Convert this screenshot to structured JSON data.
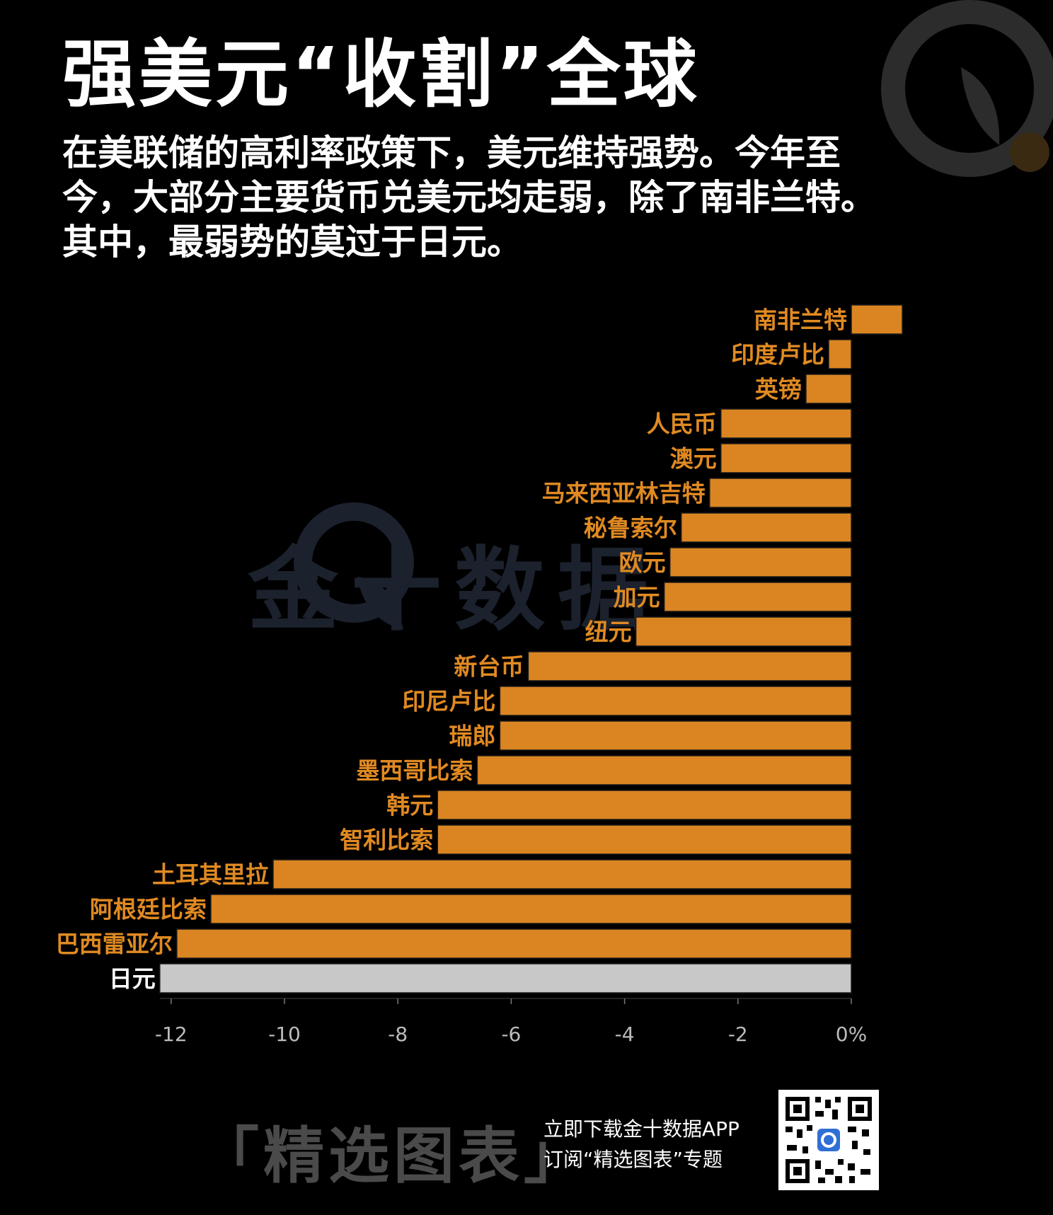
{
  "title": "强美元“收割”全球",
  "subtitle": "在美联储的高利率政策下，美元维持强势。今年至今，大部分主要货币兑美元均走弱，除了南非兰特。其中，最弱势的莫过于日元。",
  "watermark": "金十数据",
  "colors": {
    "background": "#000000",
    "bar": "#db8522",
    "bar_highlight": "#c8c8c8",
    "label": "#e08a22",
    "label_highlight": "#ffffff"
  },
  "chart_data": {
    "type": "bar",
    "orientation": "horizontal",
    "categories": [
      "南非兰特",
      "印度卢比",
      "英镑",
      "人民币",
      "澳元",
      "马来西亚林吉特",
      "秘鲁索尔",
      "欧元",
      "加元",
      "纽元",
      "新台币",
      "印尼卢比",
      "瑞郎",
      "墨西哥比索",
      "韩元",
      "智利比索",
      "土耳其里拉",
      "阿根廷比索",
      "巴西雷亚尔",
      "日元"
    ],
    "values": [
      0.9,
      -0.4,
      -0.8,
      -2.3,
      -2.3,
      -2.5,
      -3.0,
      -3.2,
      -3.3,
      -3.8,
      -5.7,
      -6.2,
      -6.2,
      -6.6,
      -7.3,
      -7.3,
      -10.2,
      -11.3,
      -11.9,
      -12.2
    ],
    "highlight": "日元",
    "xlim": [
      -12.2,
      0.9
    ],
    "xticks": [
      -12,
      -10,
      -8,
      -6,
      -4,
      -2,
      0
    ],
    "xtick_labels": [
      "-12",
      "-10",
      "-8",
      "-6",
      "-4",
      "-2",
      "0%"
    ],
    "grid": false
  },
  "footer": {
    "brand": "「精选图表」",
    "line1": "立即下载金十数据APP",
    "line2": "订阅“精选图表”专题"
  }
}
